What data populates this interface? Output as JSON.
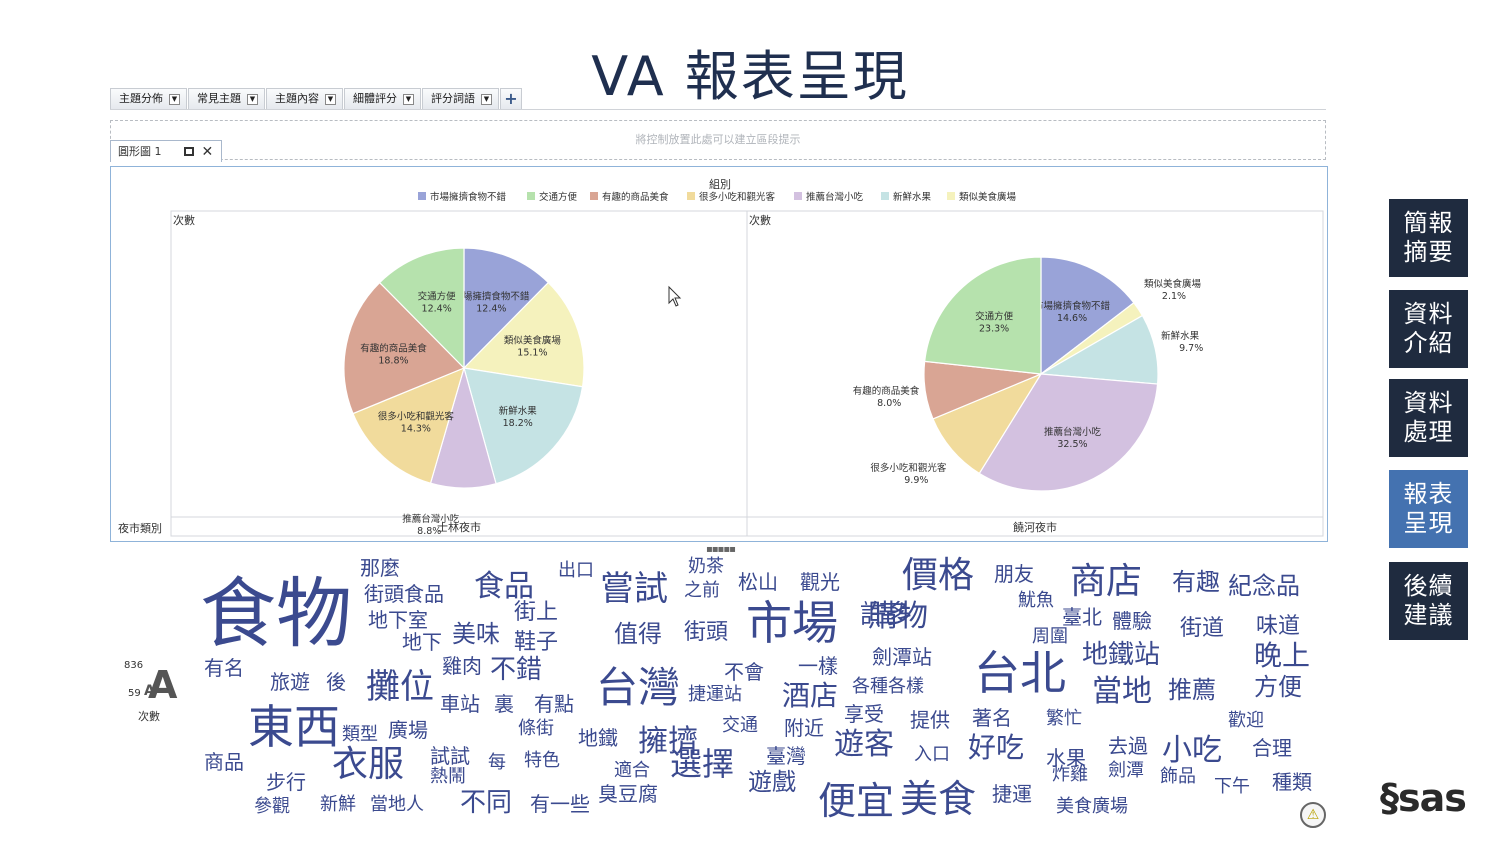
{
  "slide": {
    "title": "VA 報表呈現"
  },
  "toolbar": {
    "tabs": [
      {
        "label": "主題分佈"
      },
      {
        "label": "常見主題"
      },
      {
        "label": "主題內容"
      },
      {
        "label": "細體評分"
      },
      {
        "label": "評分詞語"
      }
    ],
    "add_label": "+"
  },
  "dropzone": {
    "hint": "將控制放置此處可以建立區段提示"
  },
  "object_tab": {
    "label": "圓形圖 1"
  },
  "colors": {
    "市場擁擠食物不錯": "#99a3d8",
    "交通方便": "#b6e2ad",
    "有趣的商品美食": "#d9a594",
    "很多小吃和觀光客": "#f1db9c",
    "推薦台灣小吃": "#d3c1e0",
    "新鮮水果": "#c5e3e4",
    "類似美食廣場": "#f5f2bd",
    "nav_dark": "#1f2b3f",
    "nav_active": "#4472b0",
    "word_cloud": "#3b4a8f"
  },
  "chart_data": {
    "type": "pie",
    "title": "組別",
    "legend_position": "top",
    "legend": [
      "市場擁擠食物不錯",
      "交通方便",
      "有趣的商品美食",
      "很多小吃和觀光客",
      "推薦台灣小吃",
      "新鮮水果",
      "類似美食廣場"
    ],
    "ylabel": "次數",
    "row_label": "夜市類別",
    "panels": [
      {
        "name": "士林夜市",
        "slices": [
          {
            "label": "市場擁擠食物不錯",
            "value": 12.4,
            "text": "12.4%"
          },
          {
            "label": "類似美食廣場",
            "value": 15.1,
            "text": "15.1%"
          },
          {
            "label": "新鮮水果",
            "value": 18.2,
            "text": "18.2%"
          },
          {
            "label": "推薦台灣小吃",
            "value": 8.8,
            "text": "8.8%"
          },
          {
            "label": "很多小吃和觀光客",
            "value": 14.3,
            "text": "14.3%"
          },
          {
            "label": "有趣的商品美食",
            "value": 18.8,
            "text": "18.8%"
          },
          {
            "label": "交通方便",
            "value": 12.4,
            "text": "12.4%"
          }
        ]
      },
      {
        "name": "饒河夜市",
        "slices": [
          {
            "label": "市場擁擠食物不錯",
            "value": 14.6,
            "text": "14.6%"
          },
          {
            "label": "類似美食廣場",
            "value": 2.1,
            "text": "2.1%"
          },
          {
            "label": "新鮮水果",
            "value": 9.7,
            "text": "9.7%"
          },
          {
            "label": "推薦台灣小吃",
            "value": 32.5,
            "text": "32.5%"
          },
          {
            "label": "很多小吃和觀光客",
            "value": 9.9,
            "text": "9.9%"
          },
          {
            "label": "有趣的商品美食",
            "value": 8.0,
            "text": "8.0%"
          },
          {
            "label": "交通方便",
            "value": 23.3,
            "text": "23.3%"
          }
        ]
      }
    ]
  },
  "word_cloud": {
    "legend": {
      "max": "836",
      "min": "59",
      "label": "次數"
    },
    "words": [
      "食物",
      "東西",
      "市場",
      "台北",
      "台灣",
      "價格",
      "商店",
      "嘗試",
      "購物",
      "擁擠",
      "便宜",
      "美食",
      "攤位",
      "衣服",
      "選擇",
      "遊客",
      "當地",
      "小吃",
      "地鐵站",
      "食品",
      "許多",
      "不錯",
      "晚上",
      "推薦",
      "方便",
      "值得",
      "街頭",
      "美味",
      "酒店",
      "好吃",
      "街頭食品",
      "那麼",
      "出口",
      "奶茶",
      "之前",
      "松山",
      "觀光",
      "朋友",
      "有趣",
      "紀念品",
      "街上",
      "魷魚",
      "臺北",
      "體驗",
      "街道",
      "味道",
      "地下室",
      "地下",
      "鞋子",
      "周圍",
      "劍潭站",
      "有名",
      "旅遊",
      "後",
      "雞肉",
      "車站",
      "裏",
      "有點",
      "捷運站",
      "不會",
      "一樣",
      "各種各樣",
      "享受",
      "提供",
      "著名",
      "繁忙",
      "歡迎",
      "類型",
      "廣場",
      "條街",
      "地鐵",
      "交通",
      "附近",
      "臺灣",
      "入口",
      "水果",
      "去過",
      "合理",
      "商品",
      "試試",
      "熱鬧",
      "每",
      "特色",
      "適合",
      "遊戲",
      "炸雞",
      "劍潭",
      "飾品",
      "步行",
      "參觀",
      "新鮮",
      "當地人",
      "不同",
      "有一些",
      "臭豆腐",
      "捷運",
      "美食廣場",
      "下午",
      "種類"
    ]
  },
  "nav": {
    "items": [
      {
        "label": "簡報\n摘要"
      },
      {
        "label": "資料\n介紹"
      },
      {
        "label": "資料\n處理"
      },
      {
        "label": "報表\n呈現"
      },
      {
        "label": "後續\n建議"
      }
    ]
  },
  "logo": {
    "text": "sas"
  }
}
